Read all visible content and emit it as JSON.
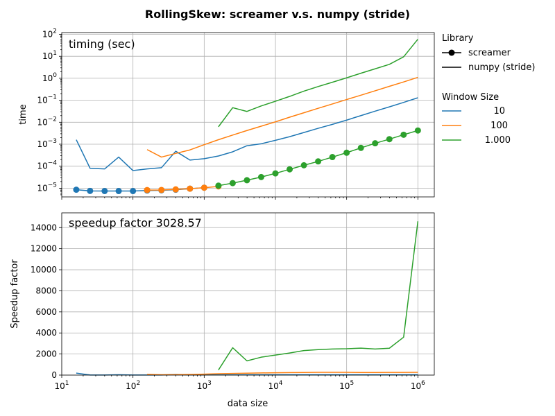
{
  "figure_title": "RollingSkew:  screamer v.s. numpy (stride)",
  "legend": {
    "library_title": "Library",
    "library_items": [
      "screamer",
      "numpy (stride)"
    ],
    "window_title": "Window Size",
    "window_items": [
      "10",
      "100",
      "1.000"
    ]
  },
  "colors": {
    "w10": "#1f77b4",
    "w100": "#ff7f0e",
    "w1000": "#2ca02c"
  },
  "chart_data": [
    {
      "type": "line",
      "annotation": "timing (sec)",
      "xlabel": "",
      "ylabel": "time",
      "xscale": "log",
      "yscale": "log",
      "xlim": [
        10,
        1700000
      ],
      "ylim": [
        4e-06,
        120
      ],
      "x_ticks": [
        10,
        100,
        1000,
        10000,
        100000,
        1000000
      ],
      "y_ticks": [
        1e-05,
        0.0001,
        0.001,
        0.01,
        0.1,
        1,
        10,
        100
      ],
      "y_tick_labels": [
        {
          "b": "10",
          "e": "−5"
        },
        {
          "b": "10",
          "e": "−4"
        },
        {
          "b": "10",
          "e": "−3"
        },
        {
          "b": "10",
          "e": "−2"
        },
        {
          "b": "10",
          "e": "−1"
        },
        {
          "b": "10",
          "e": "0"
        },
        {
          "b": "10",
          "e": "1"
        },
        {
          "b": "10",
          "e": "2"
        }
      ],
      "grid": true,
      "series": [
        {
          "name": "10",
          "library": "screamer",
          "color": "#1f77b4",
          "marker": "circle",
          "x": [
            16,
            25,
            40,
            63,
            100,
            158,
            251,
            398,
            631,
            1000
          ],
          "y": [
            8.5e-06,
            7.5e-06,
            7.4e-06,
            7.4e-06,
            7.4e-06,
            7.8e-06,
            8e-06,
            8.5e-06,
            9.5e-06,
            1.05e-05
          ]
        },
        {
          "name": "100",
          "library": "screamer",
          "color": "#ff7f0e",
          "marker": "circle",
          "x": [
            158,
            251,
            398,
            631,
            1000,
            1585
          ],
          "y": [
            8.2e-06,
            8.3e-06,
            8.8e-06,
            9.5e-06,
            1.05e-05,
            1.2e-05
          ]
        },
        {
          "name": "1.000",
          "library": "screamer",
          "color": "#2ca02c",
          "marker": "circle",
          "x": [
            1585,
            2512,
            3981,
            6310,
            10000,
            15849,
            25119,
            39811,
            63096,
            100000,
            158489,
            251189,
            398107,
            630957,
            1000000
          ],
          "y": [
            1.3e-05,
            1.7e-05,
            2.3e-05,
            3.2e-05,
            4.7e-05,
            7.2e-05,
            0.00011,
            0.000165,
            0.00026,
            0.00041,
            0.00068,
            0.0011,
            0.0017,
            0.0027,
            0.0042
          ]
        },
        {
          "name": "10",
          "library": "numpy (stride)",
          "color": "#1f77b4",
          "marker": "none",
          "x": [
            16,
            25,
            40,
            63,
            100,
            158,
            251,
            398,
            631,
            1000,
            1585,
            2512,
            3981,
            6310,
            10000,
            15849,
            25119,
            39811,
            63096,
            100000,
            158489,
            251189,
            398107,
            630957,
            1000000
          ],
          "y": [
            0.0016,
            8e-05,
            7.5e-05,
            0.00026,
            6.3e-05,
            7.5e-05,
            8.5e-05,
            0.00048,
            0.00019,
            0.00022,
            0.00029,
            0.00045,
            0.00085,
            0.00105,
            0.0015,
            0.0022,
            0.0034,
            0.0053,
            0.008,
            0.0125,
            0.02,
            0.032,
            0.05,
            0.08,
            0.13
          ]
        },
        {
          "name": "100",
          "library": "numpy (stride)",
          "color": "#ff7f0e",
          "marker": "none",
          "x": [
            158,
            251,
            398,
            631,
            1000,
            1585,
            2512,
            3981,
            6310,
            10000,
            15849,
            25119,
            39811,
            63096,
            100000,
            158489,
            251189,
            398107,
            630957,
            1000000
          ],
          "y": [
            0.00057,
            0.00026,
            0.00038,
            0.00055,
            0.00095,
            0.0016,
            0.0026,
            0.0042,
            0.0066,
            0.0104,
            0.017,
            0.027,
            0.043,
            0.068,
            0.108,
            0.17,
            0.27,
            0.43,
            0.68,
            1.1
          ]
        },
        {
          "name": "1.000",
          "library": "numpy (stride)",
          "color": "#2ca02c",
          "marker": "none",
          "x": [
            1585,
            2512,
            3981,
            6310,
            10000,
            15849,
            25119,
            39811,
            63096,
            100000,
            158489,
            251189,
            398107,
            630957,
            1000000
          ],
          "y": [
            0.0062,
            0.046,
            0.031,
            0.055,
            0.09,
            0.15,
            0.26,
            0.42,
            0.66,
            1.05,
            1.7,
            2.7,
            4.3,
            9.5,
            60
          ]
        }
      ]
    },
    {
      "type": "line",
      "annotation": "speedup factor  3028.57",
      "xlabel": "data size",
      "ylabel": "Speedup factor",
      "xscale": "log",
      "yscale": "linear",
      "xlim": [
        10,
        1700000
      ],
      "ylim": [
        0,
        15400
      ],
      "x_ticks": [
        10,
        100,
        1000,
        10000,
        100000,
        1000000
      ],
      "x_tick_labels": [
        {
          "b": "10",
          "e": "1"
        },
        {
          "b": "10",
          "e": "2"
        },
        {
          "b": "10",
          "e": "3"
        },
        {
          "b": "10",
          "e": "4"
        },
        {
          "b": "10",
          "e": "5"
        },
        {
          "b": "10",
          "e": "6"
        }
      ],
      "y_ticks": [
        0,
        2000,
        4000,
        6000,
        8000,
        10000,
        12000,
        14000
      ],
      "y_tick_labels": [
        "0",
        "2000",
        "4000",
        "6000",
        "8000",
        "10000",
        "12000",
        "14000"
      ],
      "grid": true,
      "series": [
        {
          "name": "10",
          "color": "#1f77b4",
          "x": [
            16,
            25,
            40,
            63,
            100,
            158,
            251,
            398,
            631,
            1000,
            1585,
            2512,
            3981,
            6310,
            10000,
            15849,
            25119,
            39811,
            63096,
            100000,
            158489,
            251189,
            398107,
            630957,
            1000000
          ],
          "y": [
            190,
            11,
            10,
            35,
            9,
            10,
            11,
            56,
            20,
            21,
            23,
            26,
            37,
            33,
            32,
            31,
            31,
            32,
            31,
            30,
            29,
            29,
            29,
            30,
            31
          ]
        },
        {
          "name": "100",
          "color": "#ff7f0e",
          "x": [
            158,
            251,
            398,
            631,
            1000,
            1585,
            2512,
            3981,
            6310,
            10000,
            15849,
            25119,
            39811,
            63096,
            100000,
            158489,
            251189,
            398107,
            630957,
            1000000
          ],
          "y": [
            70,
            31,
            43,
            58,
            90,
            133,
            153,
            183,
            206,
            221,
            236,
            245,
            261,
            262,
            263,
            250,
            245,
            253,
            252,
            262
          ]
        },
        {
          "name": "1.000",
          "color": "#2ca02c",
          "x": [
            1585,
            2512,
            3981,
            6310,
            10000,
            15849,
            25119,
            39811,
            63096,
            100000,
            158489,
            251189,
            398107,
            630957,
            1000000
          ],
          "y": [
            480,
            2600,
            1350,
            1700,
            1900,
            2100,
            2330,
            2420,
            2480,
            2500,
            2560,
            2480,
            2550,
            3600,
            14600
          ]
        }
      ]
    }
  ]
}
